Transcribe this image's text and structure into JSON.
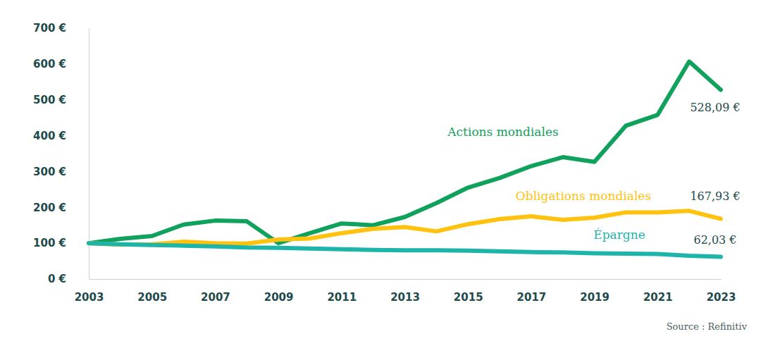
{
  "chart_data": {
    "type": "line",
    "x": [
      2003,
      2004,
      2005,
      2006,
      2007,
      2008,
      2009,
      2010,
      2011,
      2012,
      2013,
      2014,
      2015,
      2016,
      2017,
      2018,
      2019,
      2020,
      2021,
      2022,
      2023
    ],
    "xlim": [
      2003,
      2023
    ],
    "xticks": [
      2003,
      2005,
      2007,
      2009,
      2011,
      2013,
      2015,
      2017,
      2019,
      2021,
      2023
    ],
    "ylim": [
      0,
      700
    ],
    "yticks": [
      {
        "value": 0,
        "label": "0 €"
      },
      {
        "value": 100,
        "label": "100 €"
      },
      {
        "value": 200,
        "label": "200 €"
      },
      {
        "value": 300,
        "label": "300 €"
      },
      {
        "value": 400,
        "label": "400 €"
      },
      {
        "value": 500,
        "label": "500 €"
      },
      {
        "value": 600,
        "label": "600 €"
      },
      {
        "value": 700,
        "label": "700 €"
      }
    ],
    "grid": false,
    "series": [
      {
        "name": "Actions mondiales",
        "color": "#10a15c",
        "values": [
          100,
          112,
          120,
          152,
          163,
          161,
          100,
          128,
          155,
          150,
          173,
          212,
          255,
          282,
          315,
          340,
          327,
          428,
          458,
          607,
          528.09
        ],
        "value_labels": [
          null,
          null,
          null,
          null,
          null,
          null,
          null,
          null,
          null,
          null,
          null,
          null,
          null,
          null,
          null,
          null,
          null,
          null,
          null,
          null,
          "528,09 €"
        ]
      },
      {
        "name": "Obligations mondiales",
        "color": "#ffc20e",
        "values": [
          100,
          96,
          97,
          104,
          100,
          99,
          110,
          113,
          128,
          140,
          145,
          133,
          153,
          167,
          175,
          165,
          171,
          186,
          186,
          190,
          167.93
        ],
        "value_labels": [
          null,
          null,
          null,
          null,
          null,
          null,
          null,
          null,
          null,
          null,
          null,
          null,
          null,
          null,
          null,
          null,
          null,
          null,
          null,
          null,
          "167,93 €"
        ]
      },
      {
        "name": "Épargne",
        "color": "#1db5aa",
        "values": [
          100,
          97,
          95,
          93,
          91,
          88,
          87,
          85,
          83,
          81,
          80,
          80,
          79,
          77,
          75,
          74,
          72,
          71,
          70,
          65,
          62.03
        ],
        "value_labels": [
          null,
          null,
          null,
          null,
          null,
          null,
          null,
          null,
          null,
          null,
          null,
          null,
          null,
          null,
          null,
          null,
          null,
          null,
          null,
          null,
          "62,03 €"
        ]
      }
    ],
    "source": "Source : Refinitiv"
  }
}
